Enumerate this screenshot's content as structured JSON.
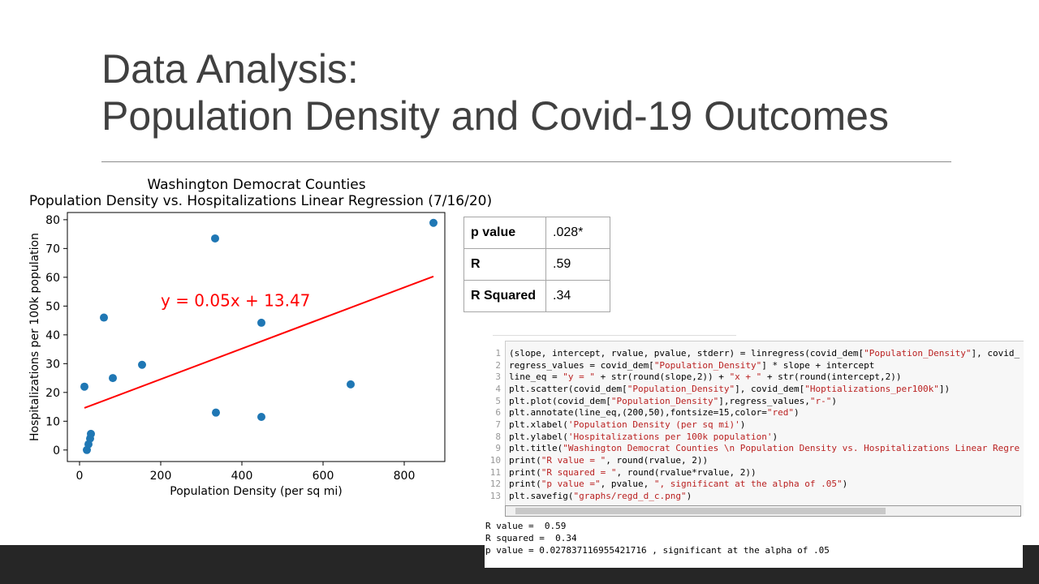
{
  "slide": {
    "title": [
      "Data Analysis:",
      "Population Density and Covid-19 Outcomes"
    ]
  },
  "chart_data": {
    "type": "scatter",
    "title": "Washington Democrat Counties",
    "subtitle": "Population Density vs. Hospitalizations Linear Regression (7/16/20)",
    "x_label": "Population Density (per sq mi)",
    "y_label": "Hospitalizations per 100k population",
    "x": [
      12,
      60,
      82,
      154,
      18,
      22,
      26,
      28,
      334,
      336,
      448,
      448,
      668,
      872
    ],
    "values": [
      22,
      46,
      25,
      29.6,
      0,
      2,
      4,
      5.6,
      73.5,
      13,
      44.2,
      11.5,
      22.8,
      78.9
    ],
    "color": "#1f77b4",
    "regression": {
      "x": [
        12,
        872
      ],
      "values": [
        14.6,
        60.3
      ],
      "color": "#ff0000"
    },
    "annotation": {
      "text": "y = 0.05x + 13.47",
      "x": 200,
      "y": 50,
      "color": "#ff0000"
    },
    "xlim": [
      -30,
      900
    ],
    "ylim": [
      -4,
      82.5
    ],
    "xticks": [
      0,
      200,
      400,
      600,
      800
    ],
    "yticks": [
      0,
      10,
      20,
      30,
      40,
      50,
      60,
      70,
      80
    ]
  },
  "table": {
    "rows": [
      [
        "p value",
        ".028*"
      ],
      [
        "R",
        ".59"
      ],
      [
        "R Squared",
        ".34"
      ]
    ]
  },
  "code": {
    "lines": [
      {
        "number": "1",
        "text": "(slope, intercept, rvalue, pvalue, stderr) = linregress(covid_dem[\"Population_Density\"], covid_"
      },
      {
        "number": "2",
        "text": "regress_values = covid_dem[\"Population_Density\"] * slope + intercept"
      },
      {
        "number": "3",
        "text": "line_eq = \"y = \" + str(round(slope,2)) + \"x + \" + str(round(intercept,2))"
      },
      {
        "number": "4",
        "text": "plt.scatter(covid_dem[\"Population_Density\"], covid_dem[\"Hoptializations_per100k\"])"
      },
      {
        "number": "5",
        "text": "plt.plot(covid_dem[\"Population_Density\"],regress_values,\"r-\")"
      },
      {
        "number": "6",
        "text": "plt.annotate(line_eq,(200,50),fontsize=15,color=\"red\")"
      },
      {
        "number": "7",
        "text": "plt.xlabel('Population Density (per sq mi)')"
      },
      {
        "number": "8",
        "text": "plt.ylabel('Hospitalizations per 100k population')"
      },
      {
        "number": "9",
        "text": "plt.title(\"Washington Democrat Counties \\n Population Density vs. Hospitalizations Linear Regre"
      },
      {
        "number": "10",
        "text": "print(\"R value = \", round(rvalue, 2))"
      },
      {
        "number": "11",
        "text": "print(\"R squared = \", round(rvalue*rvalue, 2))"
      },
      {
        "number": "12",
        "text": "print(\"p value =\", pvalue, \", significant at the alpha of .05\")"
      },
      {
        "number": "13",
        "text": "plt.savefig(\"graphs/regd_d_c.png\")"
      }
    ],
    "output": [
      "R value =  0.59",
      "R squared =  0.34",
      "p value = 0.027837116955421716 , significant at the alpha of .05"
    ]
  }
}
